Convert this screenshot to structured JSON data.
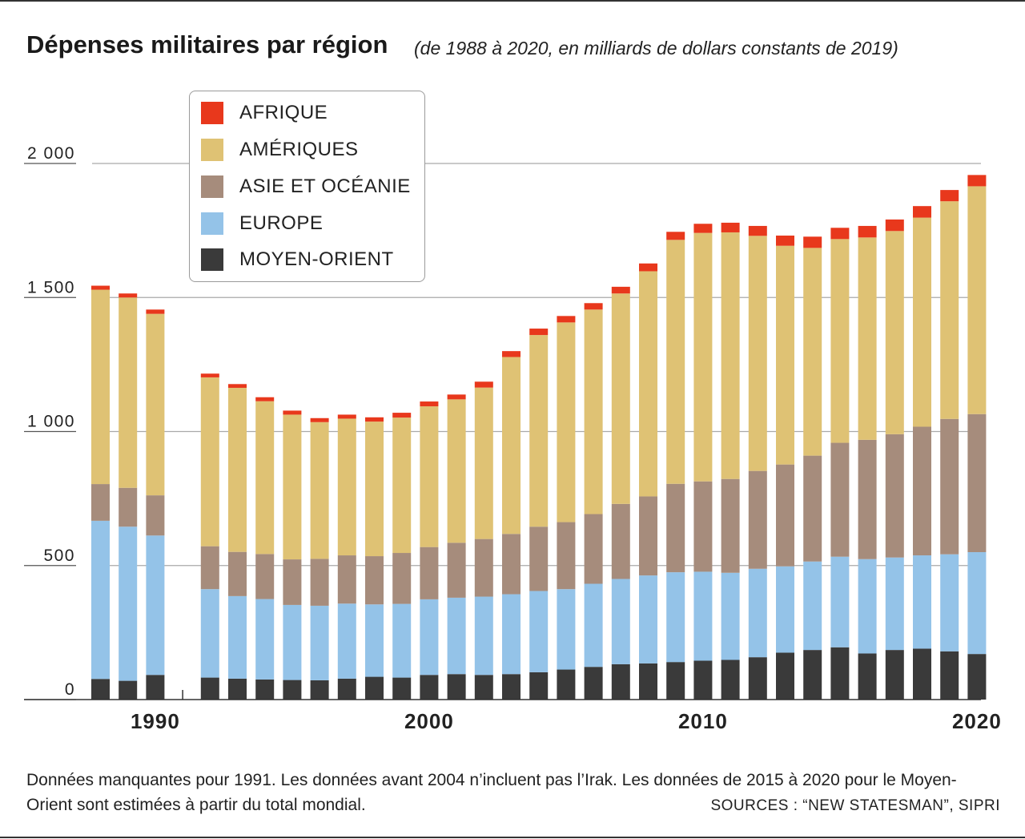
{
  "title": "Dépenses militaires par région",
  "subtitle": "(de 1988 à 2020, en milliards de dollars constants de 2019)",
  "legend": [
    {
      "label": "AFRIQUE",
      "color": "#e8381c"
    },
    {
      "label": "AMÉRIQUES",
      "color": "#dfc274"
    },
    {
      "label": "ASIE ET OCÉANIE",
      "color": "#a68c7c"
    },
    {
      "label": "EUROPE",
      "color": "#94c3e8"
    },
    {
      "label": "MOYEN-ORIENT",
      "color": "#3a3a3a"
    }
  ],
  "footnote": "Données manquantes pour 1991. Les données avant 2004 n’incluent pas l’Irak. Les données de 2015 à 2020 pour le Moyen-Orient sont estimées à partir du total mondial.",
  "sources": "SOURCES : “NEW STATESMAN”, SIPRI",
  "chart_data": {
    "type": "bar",
    "stacked": true,
    "title": "Dépenses militaires par région",
    "ylabel": "milliards de dollars constants de 2019",
    "ylim": [
      0,
      2000
    ],
    "yticks": [
      {
        "value": 0,
        "label": "0"
      },
      {
        "value": 500,
        "label": "500"
      },
      {
        "value": 1000,
        "label": "1 000"
      },
      {
        "value": 1500,
        "label": "1 500"
      },
      {
        "value": 2000,
        "label": "2 000"
      }
    ],
    "xticks": [
      {
        "value": 1990,
        "label": "1990"
      },
      {
        "value": 2000,
        "label": "2000"
      },
      {
        "value": 2010,
        "label": "2010"
      },
      {
        "value": 2020,
        "label": "2020"
      }
    ],
    "xrange": [
      1988,
      2020
    ],
    "missing": [
      1991
    ],
    "categories": [
      1988,
      1989,
      1990,
      1992,
      1993,
      1994,
      1995,
      1996,
      1997,
      1998,
      1999,
      2000,
      2001,
      2002,
      2003,
      2004,
      2005,
      2006,
      2007,
      2008,
      2009,
      2010,
      2011,
      2012,
      2013,
      2014,
      2015,
      2016,
      2017,
      2018,
      2019,
      2020
    ],
    "series": [
      {
        "name": "MOYEN-ORIENT",
        "color": "#3a3a3a",
        "values": [
          77,
          70,
          92,
          82,
          78,
          75,
          73,
          72,
          78,
          85,
          82,
          92,
          95,
          92,
          95,
          102,
          112,
          122,
          132,
          135,
          140,
          145,
          148,
          158,
          175,
          185,
          195,
          172,
          185,
          190,
          180,
          170
        ]
      },
      {
        "name": "EUROPE",
        "color": "#94c3e8",
        "values": [
          590,
          575,
          520,
          330,
          308,
          300,
          280,
          278,
          280,
          270,
          275,
          282,
          285,
          292,
          298,
          303,
          300,
          310,
          318,
          328,
          335,
          332,
          325,
          330,
          322,
          330,
          338,
          352,
          345,
          348,
          362,
          380
        ]
      },
      {
        "name": "ASIE ET OCÉANIE",
        "color": "#a68c7c",
        "values": [
          137,
          145,
          150,
          160,
          165,
          168,
          170,
          175,
          180,
          180,
          190,
          195,
          205,
          215,
          225,
          240,
          250,
          260,
          280,
          295,
          330,
          337,
          350,
          365,
          380,
          395,
          425,
          445,
          460,
          480,
          505,
          515
        ]
      },
      {
        "name": "AMÉRIQUES",
        "color": "#dfc274",
        "values": [
          725,
          710,
          677,
          630,
          612,
          570,
          540,
          510,
          510,
          502,
          505,
          525,
          535,
          565,
          660,
          715,
          745,
          763,
          785,
          840,
          910,
          927,
          920,
          877,
          816,
          775,
          760,
          755,
          758,
          780,
          812,
          850
        ]
      },
      {
        "name": "AFRIQUE",
        "color": "#e8381c",
        "values": [
          15,
          15,
          16,
          14,
          14,
          15,
          15,
          15,
          15,
          16,
          18,
          18,
          18,
          22,
          22,
          24,
          24,
          24,
          25,
          29,
          30,
          34,
          36,
          37,
          38,
          42,
          42,
          43,
          43,
          43,
          42,
          42
        ]
      }
    ]
  }
}
